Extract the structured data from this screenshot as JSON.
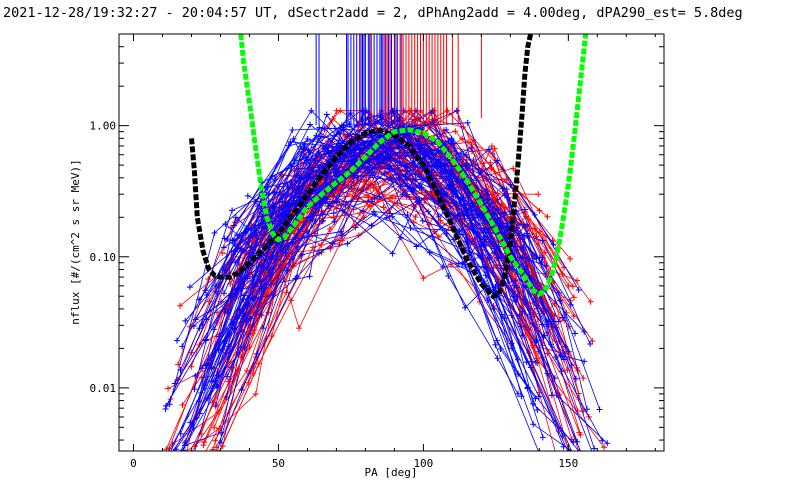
{
  "chart_data": {
    "type": "scatter",
    "title": "2021-12-28/19:32:27 - 20:04:57 UT, dSectr2add = 2, dPhAng2add = 4.00deg, dPA290_est=   5.8deg",
    "xlabel": "PA [deg]",
    "ylabel": "nflux [#/(cm^2 s sr MeV)]",
    "xlim": [
      -5,
      183
    ],
    "ylim": [
      0.0033,
      5.0
    ],
    "yscale": "log",
    "grid": false,
    "x_ticks": [
      0,
      50,
      100,
      150
    ],
    "x_tick_labels": [
      "0",
      "50",
      "100",
      "150"
    ],
    "y_ticks": [
      0.01,
      0.1,
      1.0
    ],
    "y_tick_labels": [
      "0.01",
      "0.10",
      "1.00"
    ],
    "colors": {
      "red_series": "#ff0000",
      "blue_series": "#0000ff",
      "black_fit": "#000000",
      "green_fit": "#00ff00"
    },
    "series": [
      {
        "color": "#000000",
        "style": "dashed-thick",
        "x": [
          20,
          21,
          22,
          24,
          26,
          28,
          30,
          33,
          36,
          40,
          45,
          50,
          55,
          60,
          65,
          70,
          75,
          80,
          85,
          90,
          95,
          100,
          105,
          110,
          115,
          120,
          124,
          126,
          128,
          130,
          132,
          134,
          135,
          136,
          137
        ],
        "y": [
          0.8,
          0.45,
          0.2,
          0.11,
          0.08,
          0.072,
          0.07,
          0.07,
          0.075,
          0.09,
          0.115,
          0.15,
          0.21,
          0.3,
          0.42,
          0.58,
          0.75,
          0.88,
          0.92,
          0.85,
          0.7,
          0.5,
          0.3,
          0.17,
          0.095,
          0.062,
          0.05,
          0.052,
          0.07,
          0.13,
          0.35,
          1.2,
          2.5,
          4.0,
          5.0
        ]
      },
      {
        "color": "#00ff00",
        "style": "dashed-thick",
        "x": [
          37,
          38,
          40,
          42,
          44,
          46,
          48,
          50,
          52,
          55,
          60,
          65,
          70,
          75,
          80,
          85,
          90,
          95,
          100,
          105,
          110,
          115,
          120,
          125,
          130,
          135,
          138,
          140,
          142,
          144,
          146,
          148,
          150,
          152,
          154,
          156
        ],
        "y": [
          5.0,
          3.0,
          1.5,
          0.7,
          0.35,
          0.2,
          0.15,
          0.135,
          0.14,
          0.17,
          0.24,
          0.3,
          0.37,
          0.45,
          0.58,
          0.75,
          0.9,
          0.93,
          0.88,
          0.75,
          0.55,
          0.38,
          0.25,
          0.16,
          0.1,
          0.07,
          0.055,
          0.052,
          0.055,
          0.07,
          0.1,
          0.18,
          0.35,
          0.8,
          2.0,
          5.0
        ]
      }
    ],
    "rug": {
      "blue_x": [
        63,
        64,
        73.5,
        74,
        75,
        76,
        77,
        78,
        78.5,
        79,
        79.5,
        80,
        81,
        81.5,
        82,
        83,
        84,
        85,
        85.5,
        86,
        87,
        88,
        89,
        90,
        91,
        92
      ],
      "red_x": [
        78,
        82,
        86.5,
        87.5,
        88.5,
        90.5,
        92.5,
        93,
        94,
        95,
        96,
        97,
        98,
        99,
        100,
        101,
        102,
        103,
        104,
        105,
        106,
        107,
        108,
        110,
        112,
        120
      ]
    },
    "scatter_lines": {
      "description": "Many noisy red and blue pitch-angle distributions (one line per measurement) peaking near PA 85-95 deg with values up to ~1.0, falling to ~0.003-0.01 at PA 20-40 and 150-170; plus markers",
      "peak_pa": 88,
      "peak_value": 0.95,
      "count_red": 75,
      "count_blue": 75
    }
  }
}
